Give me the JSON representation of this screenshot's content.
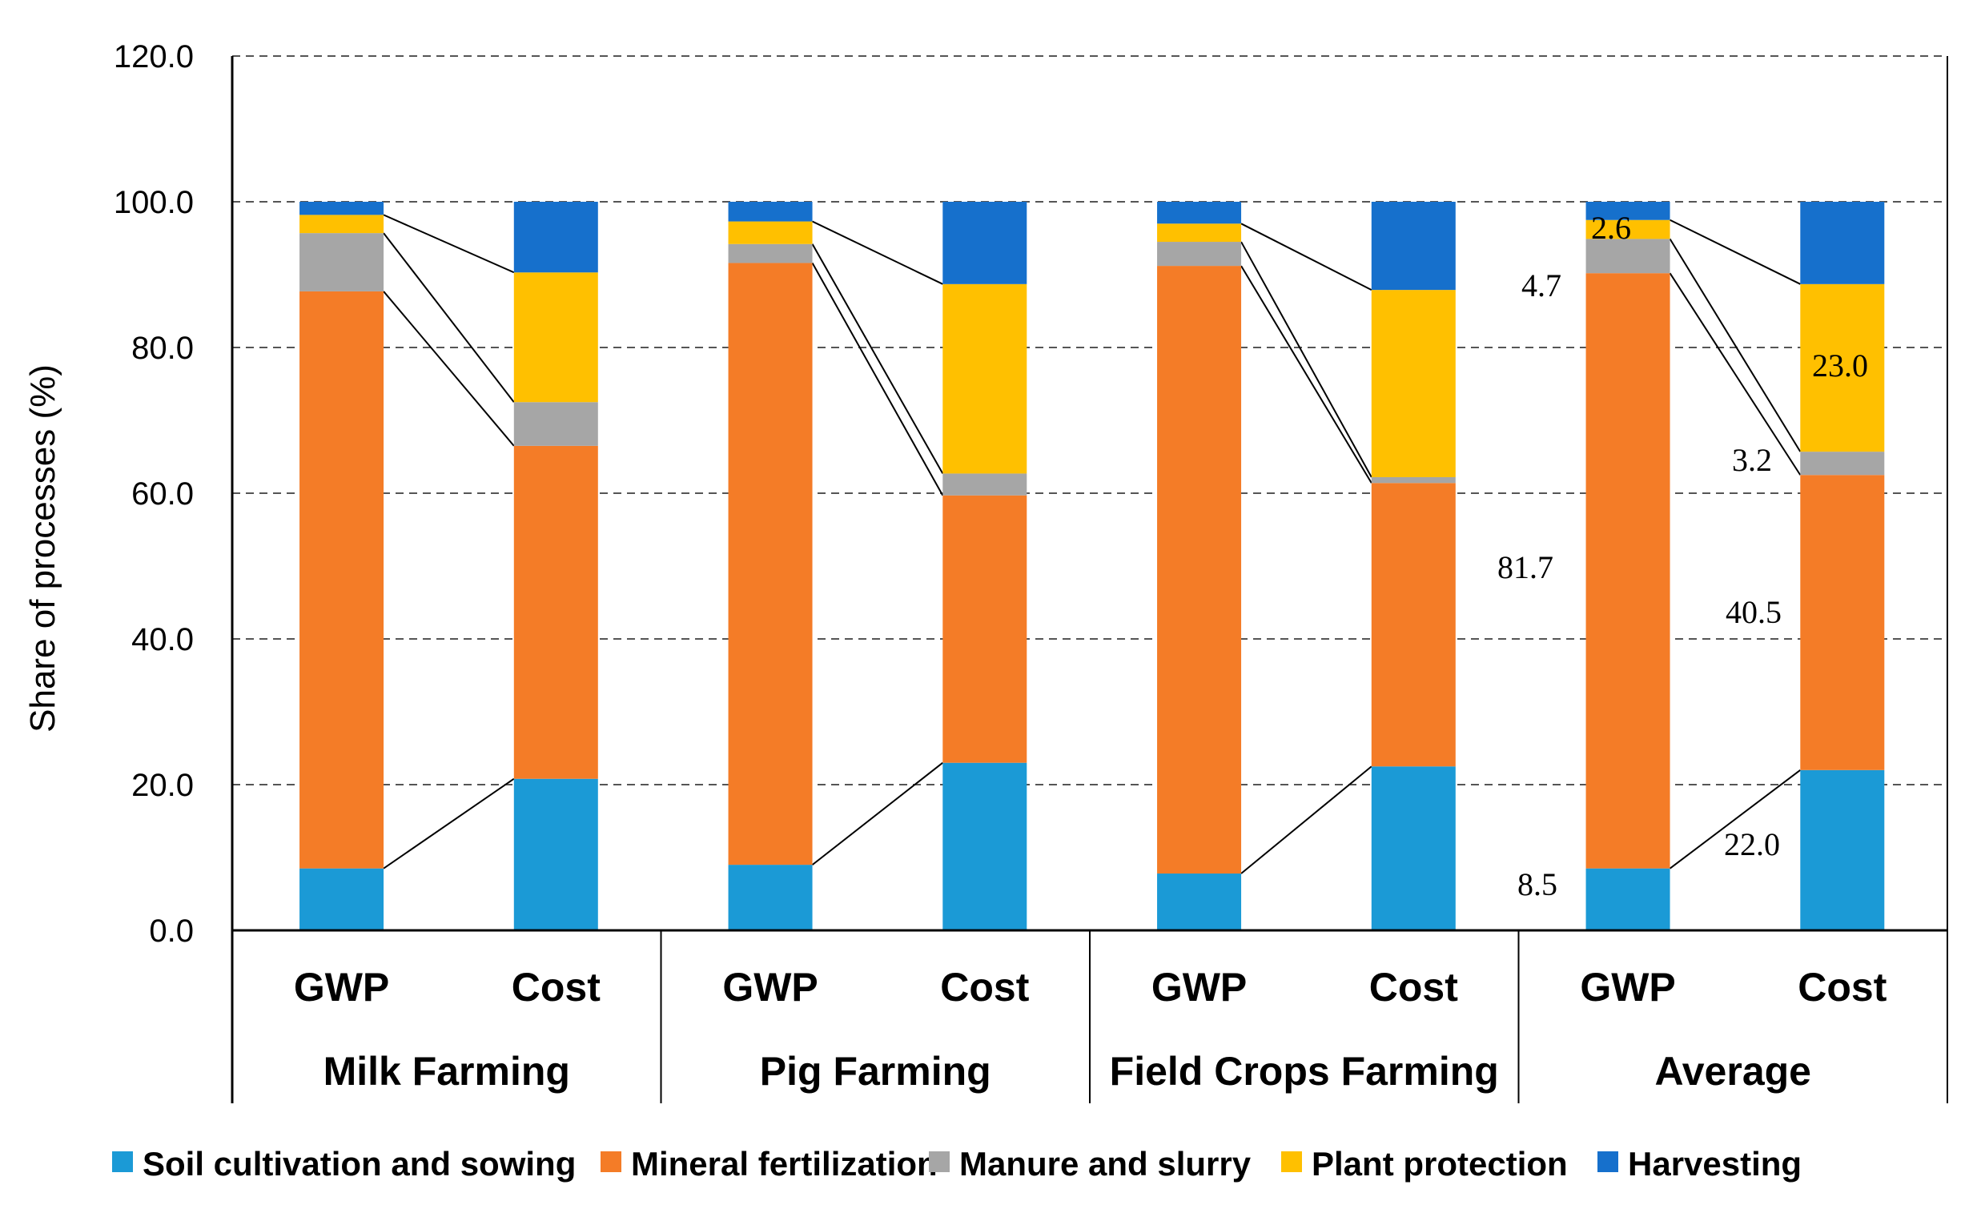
{
  "chart_data": {
    "type": "bar",
    "stacked": true,
    "normalized": true,
    "title": "",
    "xlabel": "",
    "ylabel": "Share of processes  (%)",
    "ylim": [
      0,
      120
    ],
    "yticks": [
      "0.0",
      "20.0",
      "40.0",
      "60.0",
      "80.0",
      "100.0",
      "120.0"
    ],
    "grid": true,
    "legend_position": "bottom",
    "groups": [
      {
        "name": "Milk Farming",
        "metrics": [
          "GWP",
          "Cost"
        ]
      },
      {
        "name": "Pig Farming",
        "metrics": [
          "GWP",
          "Cost"
        ]
      },
      {
        "name": "Field Crops Farming",
        "metrics": [
          "GWP",
          "Cost"
        ]
      },
      {
        "name": "Average",
        "metrics": [
          "GWP",
          "Cost"
        ]
      }
    ],
    "categories": [
      "Milk Farming GWP",
      "Milk Farming Cost",
      "Pig Farming GWP",
      "Pig Farming Cost",
      "Field Crops Farming GWP",
      "Field Crops Farming Cost",
      "Average GWP",
      "Average Cost"
    ],
    "series": [
      {
        "name": "Soil cultivation and sowing",
        "color": "#1b9ad6",
        "values": [
          8.5,
          20.8,
          9.0,
          23.0,
          7.8,
          22.5,
          8.5,
          22.0
        ]
      },
      {
        "name": "Mineral fertilization",
        "color": "#f47c27",
        "values": [
          79.2,
          45.7,
          82.6,
          36.7,
          83.4,
          38.9,
          81.7,
          40.5
        ]
      },
      {
        "name": "Manure and slurry",
        "color": "#a6a6a6",
        "values": [
          8.0,
          6.0,
          2.6,
          3.0,
          3.3,
          0.8,
          4.7,
          3.2
        ]
      },
      {
        "name": "Plant protection",
        "color": "#ffc000",
        "values": [
          2.5,
          17.8,
          3.1,
          26.0,
          2.5,
          25.7,
          2.6,
          23.0
        ]
      },
      {
        "name": "Harvesting",
        "color": "#1670cc",
        "values": [
          1.8,
          9.7,
          2.7,
          11.3,
          3.0,
          12.1,
          2.5,
          11.3
        ]
      }
    ],
    "annotations": [
      "8.5",
      "81.7",
      "4.7",
      "2.6",
      "22.0",
      "40.5",
      "3.2",
      "23.0"
    ]
  }
}
